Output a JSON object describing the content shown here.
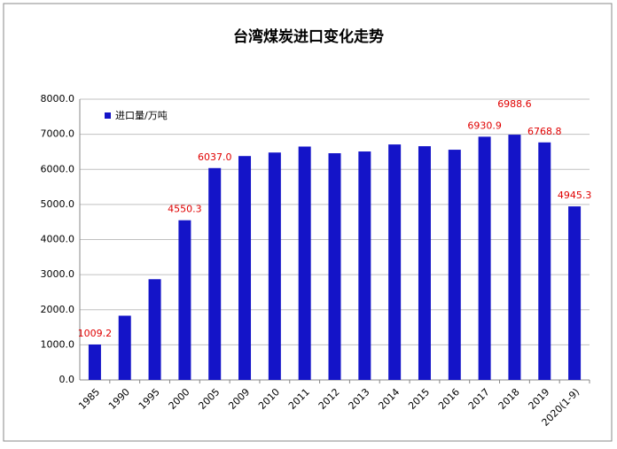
{
  "chart_data": {
    "type": "bar",
    "title": "台湾煤炭进口变化走势",
    "legend_label": "进口量/万吨",
    "categories": [
      "1985",
      "1990",
      "1995",
      "2000",
      "2005",
      "2009",
      "2010",
      "2011",
      "2012",
      "2013",
      "2014",
      "2015",
      "2016",
      "2017",
      "2018",
      "2019",
      "2020(1-9)"
    ],
    "values": [
      1009.2,
      1830,
      2870,
      4550.3,
      6037.0,
      6380,
      6480,
      6650,
      6460,
      6510,
      6710,
      6660,
      6560,
      6930.9,
      6988.6,
      6768.8,
      4945.3
    ],
    "value_labels": [
      "1009.2",
      null,
      null,
      "4550.3",
      "6037.0",
      null,
      null,
      null,
      null,
      null,
      null,
      null,
      null,
      "6930.9",
      "6988.6",
      "6768.8",
      "4945.3"
    ],
    "color": "#1414c8",
    "label_color": "#e00000",
    "ylim": [
      0,
      8000
    ],
    "yticks": [
      {
        "value": 0,
        "label": "0.0"
      },
      {
        "value": 1000,
        "label": "1000.0"
      },
      {
        "value": 2000,
        "label": "2000.0"
      },
      {
        "value": 3000,
        "label": "3000.0"
      },
      {
        "value": 4000,
        "label": "4000.0"
      },
      {
        "value": 5000,
        "label": "5000.0"
      },
      {
        "value": 6000,
        "label": "6000.0"
      },
      {
        "value": 7000,
        "label": "7000.0"
      },
      {
        "value": 8000,
        "label": "8000.0"
      }
    ],
    "grid": true
  }
}
